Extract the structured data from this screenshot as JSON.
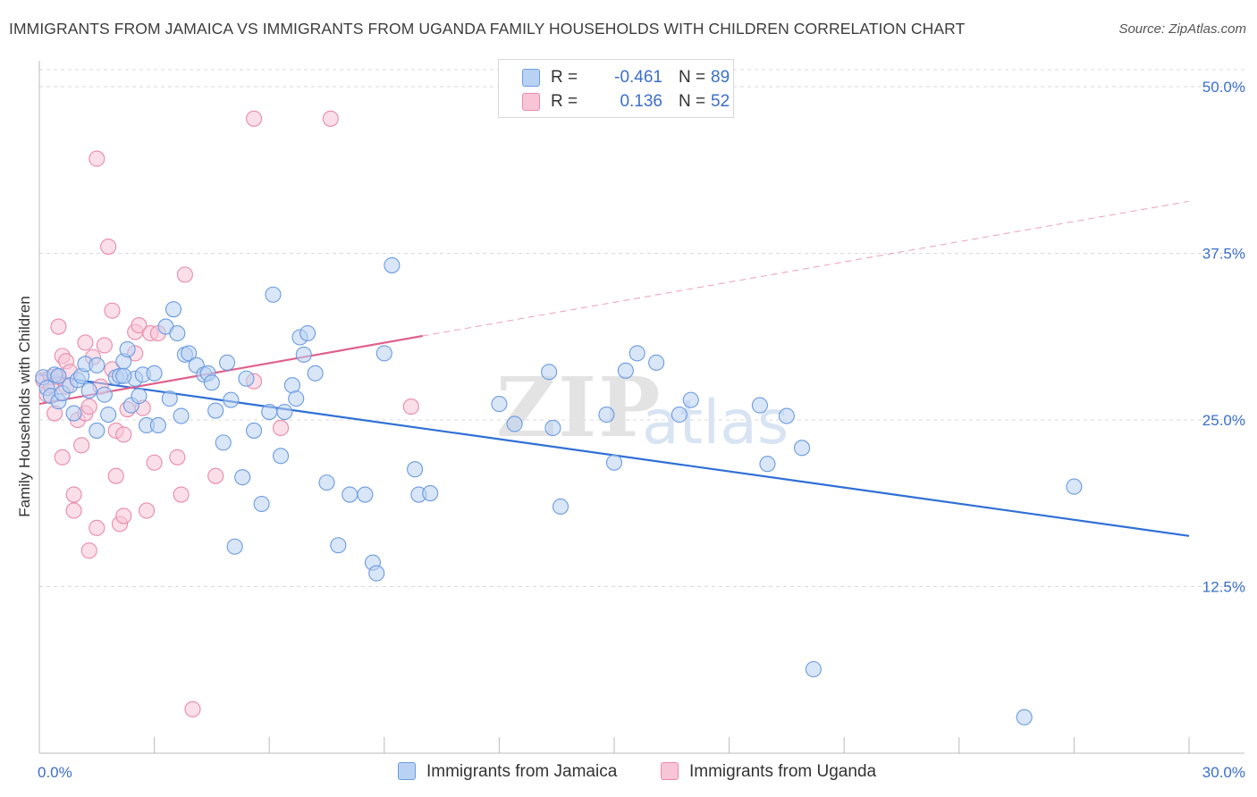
{
  "title": "IMMIGRANTS FROM JAMAICA VS IMMIGRANTS FROM UGANDA FAMILY HOUSEHOLDS WITH CHILDREN CORRELATION CHART",
  "source": "Source: ZipAtlas.com",
  "watermark": {
    "zip": "ZIP",
    "atlas": "atlas"
  },
  "colors": {
    "jamaica_fill": "#b9d2f3",
    "jamaica_stroke": "#6a9be0",
    "jamaica_line": "#2f6fd6",
    "uganda_fill": "#f7c5d5",
    "uganda_stroke": "#e98aab",
    "uganda_line": "#e0608b",
    "tick_label": "#3a6fcb",
    "grid": "#d9d9d9"
  },
  "legend": {
    "rows": [
      {
        "r_label": "R =",
        "r_value": "-0.461",
        "n_label": "N =",
        "n_value": "89"
      },
      {
        "r_label": "R =",
        "r_value": "0.136",
        "n_label": "N =",
        "n_value": "52"
      }
    ]
  },
  "chart_data": {
    "type": "scatter",
    "title": "IMMIGRANTS FROM JAMAICA VS IMMIGRANTS FROM UGANDA FAMILY HOUSEHOLDS WITH CHILDREN CORRELATION CHART",
    "xlabel": "",
    "ylabel": "Family Households with Children",
    "xlim": [
      0,
      30
    ],
    "ylim": [
      0,
      50
    ],
    "x_tick_labels": [
      "0.0%",
      "30.0%"
    ],
    "y_ticks": [
      12.5,
      25.0,
      37.5,
      50.0
    ],
    "y_tick_labels": [
      "12.5%",
      "25.0%",
      "37.5%",
      "50.0%"
    ],
    "grid": "horizontal dashed",
    "legend_position": "bottom",
    "series": [
      {
        "name": "Immigrants from Jamaica",
        "color": "#6a9be0",
        "trend": {
          "x": [
            0,
            30
          ],
          "y": [
            28.4,
            16.3
          ]
        },
        "points": [
          [
            0.1,
            28.2
          ],
          [
            0.2,
            27.4
          ],
          [
            0.3,
            26.8
          ],
          [
            0.4,
            28.4
          ],
          [
            0.5,
            26.4
          ],
          [
            0.6,
            27.0
          ],
          [
            0.8,
            27.6
          ],
          [
            0.9,
            25.5
          ],
          [
            1.0,
            28.0
          ],
          [
            1.1,
            28.3
          ],
          [
            1.2,
            29.2
          ],
          [
            1.3,
            27.2
          ],
          [
            1.5,
            29.1
          ],
          [
            1.5,
            24.2
          ],
          [
            1.7,
            26.9
          ],
          [
            1.8,
            25.4
          ],
          [
            2.0,
            28.2
          ],
          [
            2.1,
            28.3
          ],
          [
            2.2,
            29.4
          ],
          [
            2.3,
            30.3
          ],
          [
            2.4,
            26.1
          ],
          [
            2.5,
            28.1
          ],
          [
            2.6,
            26.8
          ],
          [
            2.7,
            28.4
          ],
          [
            2.8,
            24.6
          ],
          [
            3.0,
            28.5
          ],
          [
            3.1,
            24.6
          ],
          [
            3.3,
            32.0
          ],
          [
            3.4,
            26.6
          ],
          [
            3.5,
            33.3
          ],
          [
            3.6,
            31.5
          ],
          [
            3.7,
            25.3
          ],
          [
            3.8,
            29.9
          ],
          [
            3.9,
            30.0
          ],
          [
            4.1,
            29.1
          ],
          [
            4.3,
            28.4
          ],
          [
            4.4,
            28.5
          ],
          [
            4.5,
            27.8
          ],
          [
            4.6,
            25.7
          ],
          [
            4.8,
            23.3
          ],
          [
            4.9,
            29.3
          ],
          [
            5.0,
            26.5
          ],
          [
            5.1,
            15.5
          ],
          [
            5.3,
            20.7
          ],
          [
            5.4,
            28.1
          ],
          [
            5.6,
            24.2
          ],
          [
            5.8,
            18.7
          ],
          [
            6.0,
            25.6
          ],
          [
            6.1,
            34.4
          ],
          [
            6.3,
            22.3
          ],
          [
            6.4,
            25.6
          ],
          [
            6.6,
            27.6
          ],
          [
            6.7,
            26.6
          ],
          [
            6.8,
            31.2
          ],
          [
            6.9,
            29.9
          ],
          [
            7.0,
            31.5
          ],
          [
            7.2,
            28.5
          ],
          [
            7.5,
            20.3
          ],
          [
            7.8,
            15.6
          ],
          [
            8.1,
            19.4
          ],
          [
            8.5,
            19.4
          ],
          [
            8.7,
            14.3
          ],
          [
            8.8,
            13.5
          ],
          [
            9.0,
            30.0
          ],
          [
            9.2,
            36.6
          ],
          [
            9.8,
            21.3
          ],
          [
            9.9,
            19.4
          ],
          [
            10.2,
            19.5
          ],
          [
            12.0,
            26.2
          ],
          [
            12.4,
            24.7
          ],
          [
            13.3,
            28.6
          ],
          [
            13.4,
            24.4
          ],
          [
            13.6,
            18.5
          ],
          [
            14.8,
            25.4
          ],
          [
            15.0,
            21.8
          ],
          [
            15.3,
            28.7
          ],
          [
            15.6,
            30.0
          ],
          [
            16.1,
            29.3
          ],
          [
            16.7,
            25.4
          ],
          [
            17.0,
            26.5
          ],
          [
            18.8,
            26.1
          ],
          [
            19.0,
            21.7
          ],
          [
            19.5,
            25.3
          ],
          [
            19.9,
            22.9
          ],
          [
            20.2,
            6.3
          ],
          [
            25.7,
            2.7
          ],
          [
            27.0,
            20.0
          ],
          [
            0.5,
            28.3
          ],
          [
            2.2,
            28.3
          ]
        ]
      },
      {
        "name": "Immigrants from Uganda",
        "color": "#e98aab",
        "trend": {
          "x": [
            0,
            10
          ],
          "y": [
            26.2,
            31.3
          ]
        },
        "trend_extension": {
          "x": [
            10,
            30
          ],
          "y": [
            31.3,
            41.4
          ]
        },
        "points": [
          [
            0.1,
            28.0
          ],
          [
            0.2,
            26.9
          ],
          [
            0.3,
            28.2
          ],
          [
            0.4,
            25.5
          ],
          [
            0.5,
            32.0
          ],
          [
            0.5,
            28.2
          ],
          [
            0.6,
            29.8
          ],
          [
            0.6,
            22.2
          ],
          [
            0.7,
            29.4
          ],
          [
            0.7,
            27.5
          ],
          [
            0.8,
            28.6
          ],
          [
            0.9,
            18.2
          ],
          [
            0.9,
            19.4
          ],
          [
            1.0,
            25.0
          ],
          [
            1.1,
            23.1
          ],
          [
            1.2,
            30.8
          ],
          [
            1.2,
            25.5
          ],
          [
            1.3,
            26.0
          ],
          [
            1.3,
            15.2
          ],
          [
            1.4,
            29.7
          ],
          [
            1.5,
            44.6
          ],
          [
            1.5,
            16.9
          ],
          [
            1.6,
            27.5
          ],
          [
            1.7,
            30.6
          ],
          [
            1.8,
            38.0
          ],
          [
            1.9,
            33.2
          ],
          [
            1.9,
            28.8
          ],
          [
            2.0,
            24.2
          ],
          [
            2.0,
            20.8
          ],
          [
            2.1,
            17.2
          ],
          [
            2.2,
            23.9
          ],
          [
            2.2,
            17.8
          ],
          [
            2.3,
            25.8
          ],
          [
            2.5,
            31.6
          ],
          [
            2.5,
            30.0
          ],
          [
            2.6,
            32.1
          ],
          [
            2.7,
            25.9
          ],
          [
            2.8,
            18.2
          ],
          [
            2.9,
            31.5
          ],
          [
            3.0,
            21.8
          ],
          [
            3.1,
            31.5
          ],
          [
            3.6,
            22.2
          ],
          [
            3.7,
            19.4
          ],
          [
            3.8,
            35.9
          ],
          [
            4.0,
            3.3
          ],
          [
            4.6,
            20.8
          ],
          [
            5.6,
            47.6
          ],
          [
            5.6,
            27.9
          ],
          [
            6.3,
            24.4
          ],
          [
            7.6,
            47.6
          ],
          [
            9.7,
            26.0
          ],
          [
            0.3,
            27.6
          ]
        ]
      }
    ]
  },
  "bottom_legend": {
    "items": [
      {
        "label": "Immigrants from Jamaica"
      },
      {
        "label": "Immigrants from Uganda"
      }
    ]
  }
}
